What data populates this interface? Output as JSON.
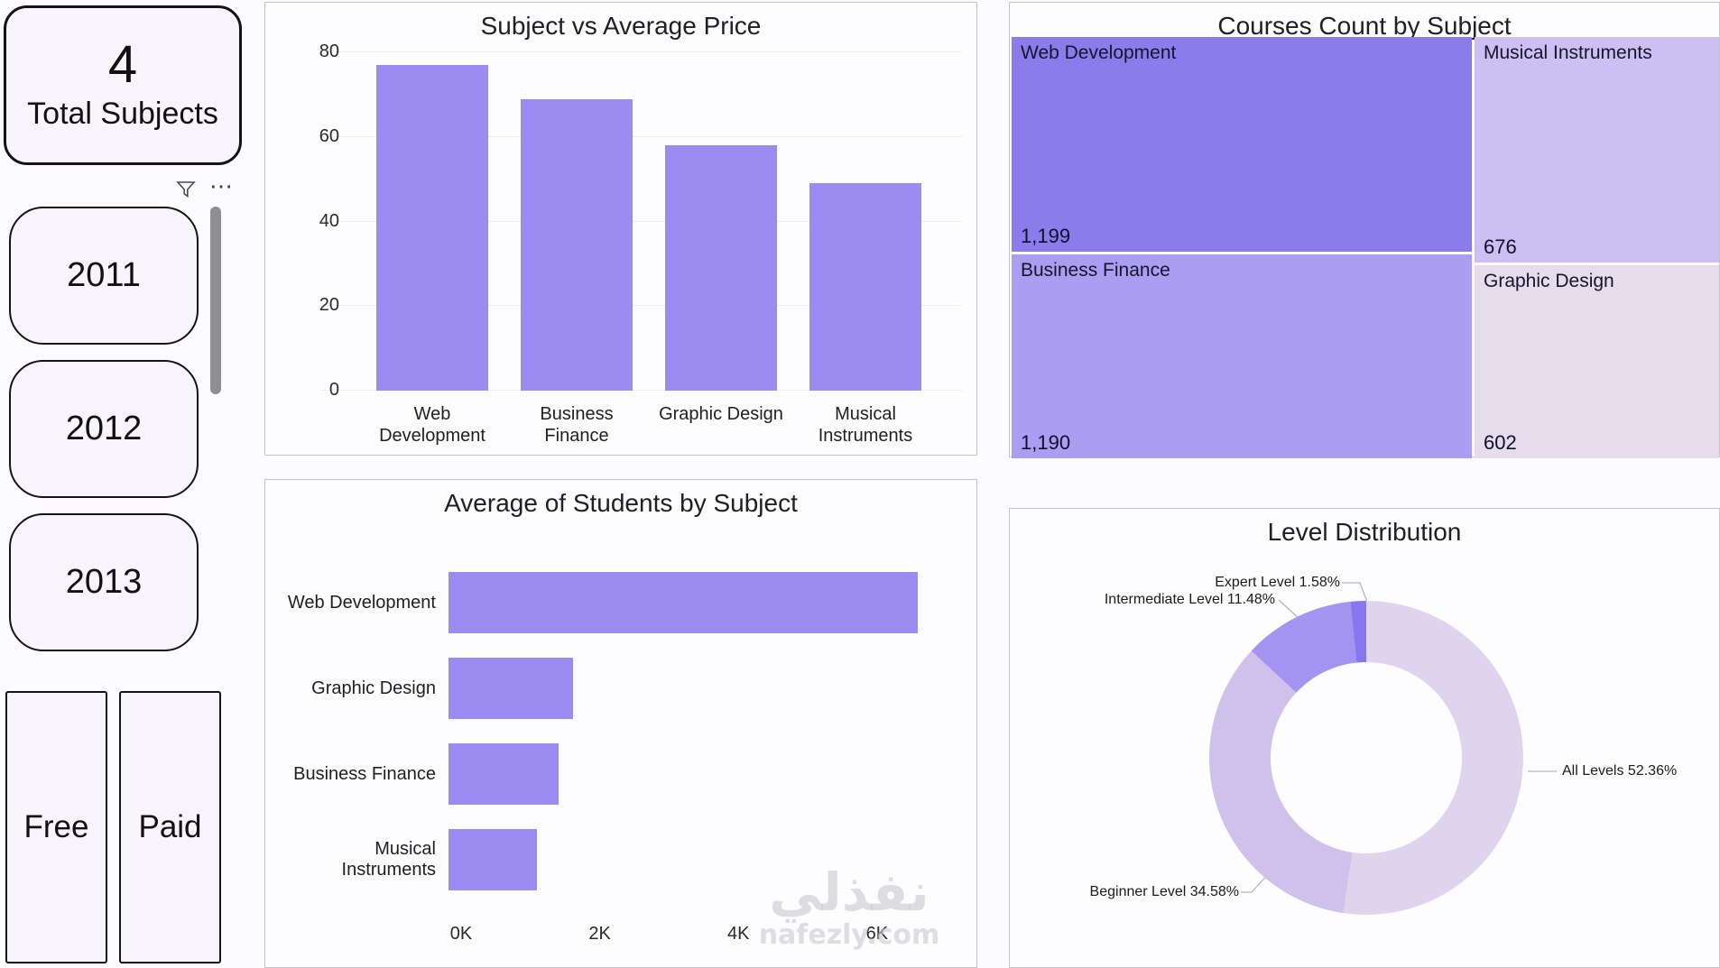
{
  "sidebar": {
    "total_card": {
      "value": "4",
      "label": "Total Subjects"
    },
    "slicer_header": {
      "filter_icon": "funnel-icon",
      "more_icon": "ellipsis-icon"
    },
    "year_buttons": [
      "2011",
      "2012",
      "2013"
    ],
    "type_buttons": [
      "Free",
      "Paid"
    ]
  },
  "watermark": {
    "line1": "نفذلي",
    "line2": "nafezly.com"
  },
  "chart_data": [
    {
      "type": "bar",
      "title": "Subject vs Average Price",
      "categories": [
        "Web Development",
        "Business Finance",
        "Graphic Design",
        "Musical Instruments"
      ],
      "values": [
        77,
        69,
        58,
        49
      ],
      "ylim": [
        0,
        80
      ],
      "yticks": [
        0,
        20,
        40,
        60,
        80
      ],
      "bar_color": "#9c8cf2",
      "grid": true,
      "legend": false
    },
    {
      "type": "treemap",
      "title": "Courses Count by Subject",
      "items": [
        {
          "label": "Web Development",
          "value": "1,199",
          "color": "#8c7ceb"
        },
        {
          "label": "Business Finance",
          "value": "1,190",
          "color": "#ab9df2"
        },
        {
          "label": "Musical Instruments",
          "value": "676",
          "color": "#cbc0f1"
        },
        {
          "label": "Graphic Design",
          "value": "602",
          "color": "#e5dcec"
        }
      ]
    },
    {
      "type": "bar-horizontal",
      "title": "Average of Students by Subject",
      "categories": [
        "Web Development",
        "Graphic Design",
        "Business Finance",
        "Musical Instruments"
      ],
      "values": [
        6600,
        1750,
        1550,
        1250
      ],
      "xlim": [
        0,
        7200
      ],
      "xticks": [
        {
          "label": "0K",
          "value": 0
        },
        {
          "label": "2K",
          "value": 2000
        },
        {
          "label": "4K",
          "value": 4000
        },
        {
          "label": "6K",
          "value": 6000
        }
      ],
      "bar_color": "#9c8cf2",
      "grid": false,
      "legend": false
    },
    {
      "type": "donut",
      "title": "Level Distribution",
      "slices": [
        {
          "label": "All Levels",
          "pct": 52.36,
          "color": "#ded4ee"
        },
        {
          "label": "Beginner Level",
          "pct": 34.58,
          "color": "#cec2ed"
        },
        {
          "label": "Intermediate Level",
          "pct": 11.48,
          "color": "#a294f0"
        },
        {
          "label": "Expert Level",
          "pct": 1.58,
          "color": "#8776ee"
        }
      ],
      "legend": "data-labels-with-leader-lines"
    }
  ]
}
